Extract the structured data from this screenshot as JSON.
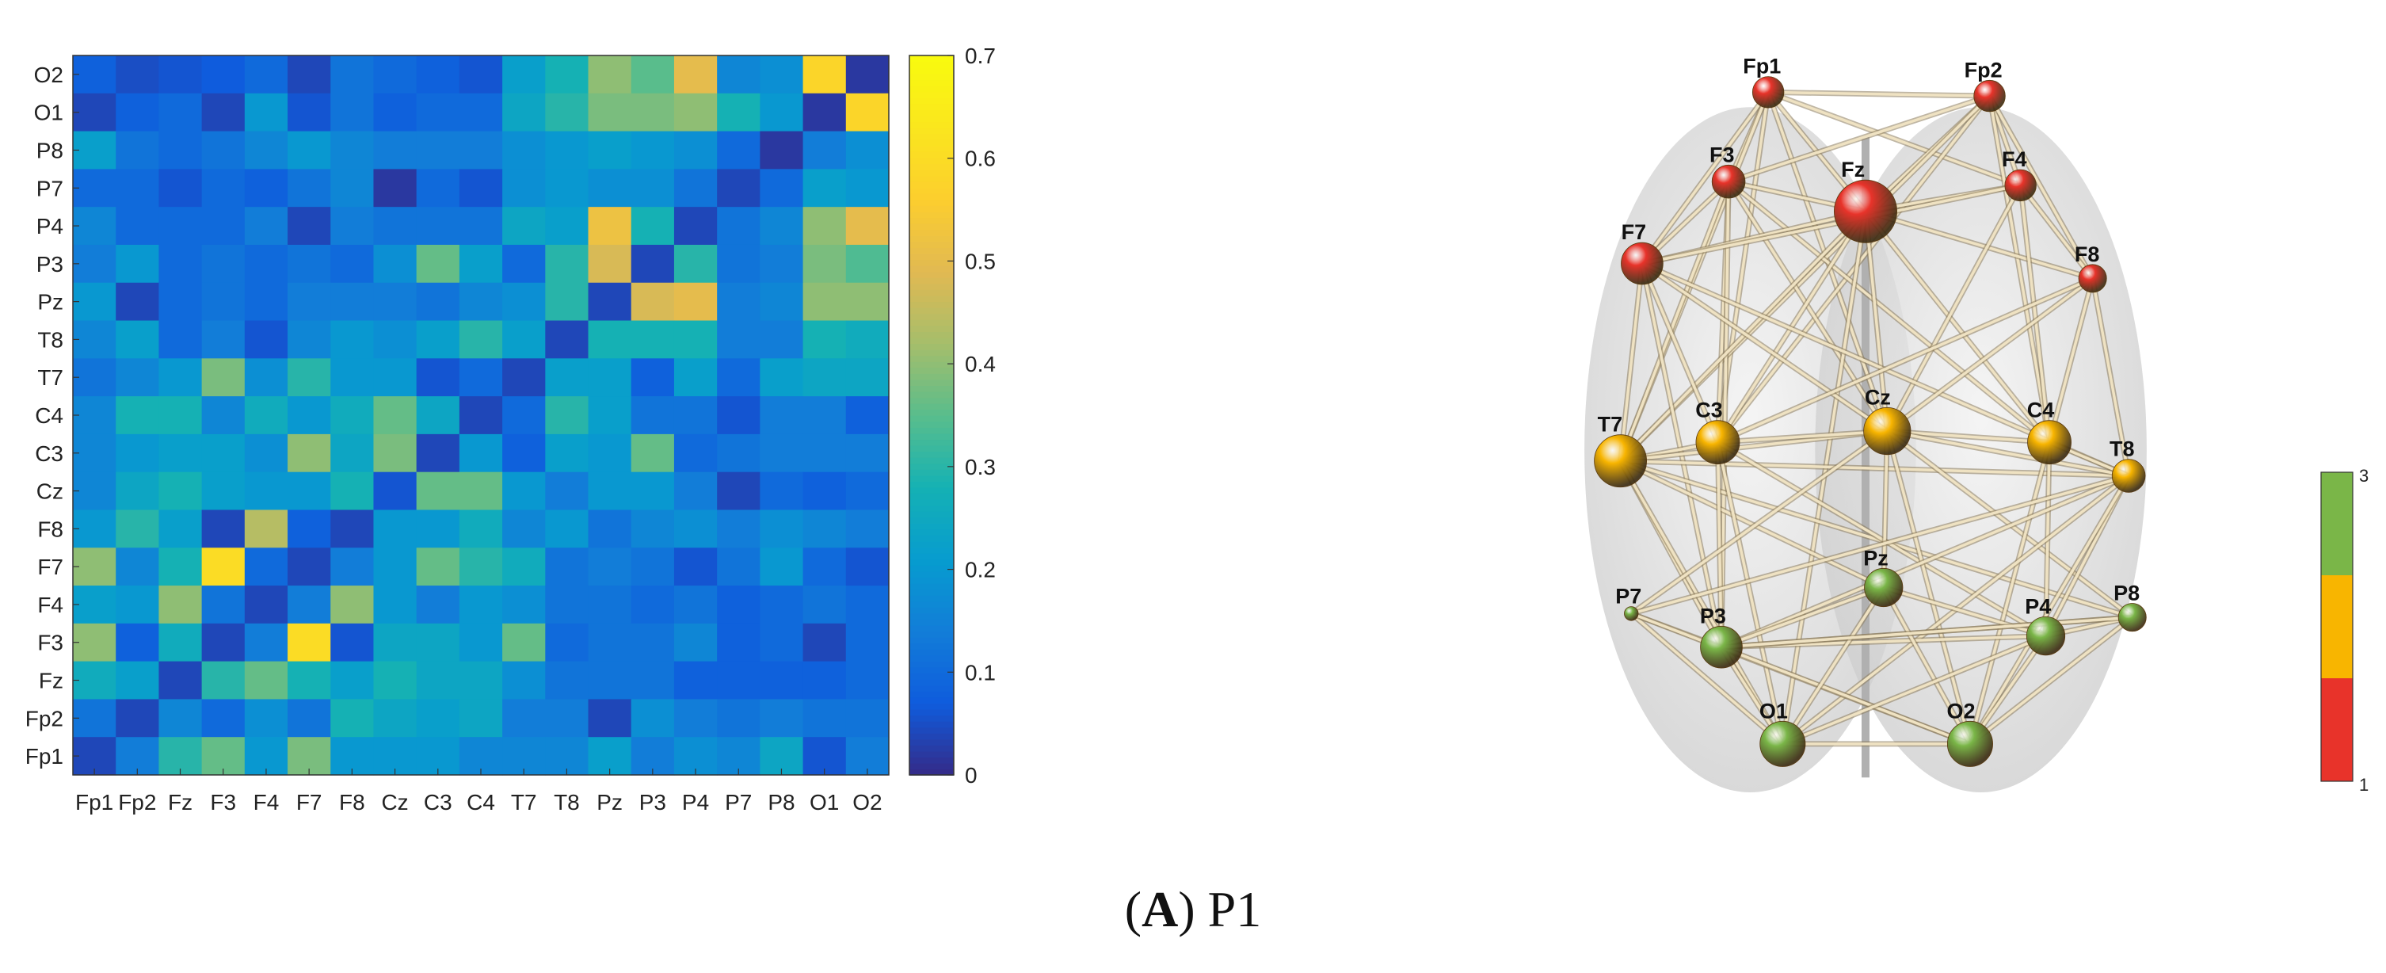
{
  "caption": {
    "letter": "A",
    "label": "P1"
  },
  "chart_data": [
    {
      "type": "heatmap",
      "x_categories": [
        "Fp1",
        "Fp2",
        "Fz",
        "F3",
        "F4",
        "F7",
        "F8",
        "Cz",
        "C3",
        "C4",
        "T7",
        "T8",
        "Pz",
        "P3",
        "P4",
        "P7",
        "P8",
        "O1",
        "O2"
      ],
      "y_categories": [
        "O2",
        "O1",
        "P8",
        "P7",
        "P4",
        "P3",
        "Pz",
        "T8",
        "T7",
        "C4",
        "C3",
        "Cz",
        "F8",
        "F7",
        "F4",
        "F3",
        "Fz",
        "Fp2",
        "Fp1"
      ],
      "colorbar": {
        "min": 0,
        "max": 0.7,
        "ticks": [
          0,
          0.1,
          0.2,
          0.3,
          0.4,
          0.5,
          0.6,
          0.7
        ],
        "tick_labels": [
          "0",
          "0.1",
          "0.2",
          "0.3",
          "0.4",
          "0.5",
          "0.6",
          "0.7"
        ],
        "colormap": "parula"
      },
      "values": [
        [
          0.08,
          0.05,
          0.06,
          0.07,
          0.1,
          0.04,
          0.12,
          0.1,
          0.08,
          0.06,
          0.22,
          0.28,
          0.4,
          0.35,
          0.5,
          0.16,
          0.18,
          0.58,
          0.02
        ],
        [
          0.04,
          0.08,
          0.1,
          0.04,
          0.2,
          0.06,
          0.12,
          0.08,
          0.1,
          0.1,
          0.24,
          0.3,
          0.38,
          0.38,
          0.4,
          0.28,
          0.2,
          0.02,
          0.58
        ],
        [
          0.22,
          0.12,
          0.1,
          0.12,
          0.16,
          0.2,
          0.16,
          0.14,
          0.14,
          0.14,
          0.18,
          0.2,
          0.22,
          0.2,
          0.18,
          0.1,
          0.02,
          0.14,
          0.18
        ],
        [
          0.1,
          0.1,
          0.06,
          0.1,
          0.08,
          0.12,
          0.16,
          0.02,
          0.1,
          0.06,
          0.18,
          0.2,
          0.18,
          0.18,
          0.12,
          0.04,
          0.1,
          0.22,
          0.2
        ],
        [
          0.16,
          0.1,
          0.1,
          0.1,
          0.14,
          0.04,
          0.14,
          0.12,
          0.12,
          0.12,
          0.24,
          0.22,
          0.52,
          0.28,
          0.04,
          0.12,
          0.16,
          0.4,
          0.5
        ],
        [
          0.14,
          0.2,
          0.1,
          0.12,
          0.1,
          0.12,
          0.1,
          0.18,
          0.36,
          0.22,
          0.1,
          0.3,
          0.48,
          0.04,
          0.3,
          0.12,
          0.14,
          0.38,
          0.34
        ],
        [
          0.2,
          0.04,
          0.1,
          0.12,
          0.1,
          0.14,
          0.14,
          0.14,
          0.12,
          0.16,
          0.18,
          0.3,
          0.04,
          0.48,
          0.5,
          0.14,
          0.16,
          0.4,
          0.4
        ],
        [
          0.16,
          0.22,
          0.1,
          0.14,
          0.06,
          0.16,
          0.2,
          0.18,
          0.22,
          0.3,
          0.22,
          0.04,
          0.28,
          0.28,
          0.28,
          0.14,
          0.14,
          0.28,
          0.26
        ],
        [
          0.12,
          0.16,
          0.2,
          0.38,
          0.18,
          0.3,
          0.2,
          0.2,
          0.06,
          0.1,
          0.04,
          0.22,
          0.22,
          0.08,
          0.22,
          0.1,
          0.22,
          0.24,
          0.24
        ],
        [
          0.16,
          0.28,
          0.28,
          0.16,
          0.26,
          0.2,
          0.26,
          0.36,
          0.24,
          0.04,
          0.1,
          0.3,
          0.22,
          0.12,
          0.12,
          0.06,
          0.14,
          0.14,
          0.08
        ],
        [
          0.16,
          0.2,
          0.22,
          0.22,
          0.18,
          0.4,
          0.24,
          0.38,
          0.04,
          0.2,
          0.08,
          0.22,
          0.2,
          0.36,
          0.1,
          0.12,
          0.14,
          0.14,
          0.14
        ],
        [
          0.16,
          0.24,
          0.28,
          0.22,
          0.2,
          0.2,
          0.28,
          0.06,
          0.36,
          0.36,
          0.2,
          0.14,
          0.2,
          0.2,
          0.14,
          0.04,
          0.1,
          0.08,
          0.1
        ],
        [
          0.2,
          0.3,
          0.22,
          0.04,
          0.44,
          0.08,
          0.04,
          0.2,
          0.2,
          0.26,
          0.16,
          0.2,
          0.12,
          0.16,
          0.18,
          0.14,
          0.18,
          0.16,
          0.14
        ],
        [
          0.4,
          0.16,
          0.28,
          0.6,
          0.1,
          0.04,
          0.14,
          0.2,
          0.36,
          0.3,
          0.26,
          0.12,
          0.14,
          0.12,
          0.06,
          0.12,
          0.2,
          0.1,
          0.06
        ],
        [
          0.22,
          0.2,
          0.4,
          0.12,
          0.04,
          0.14,
          0.4,
          0.2,
          0.14,
          0.2,
          0.18,
          0.12,
          0.12,
          0.1,
          0.12,
          0.08,
          0.1,
          0.12,
          0.1
        ],
        [
          0.4,
          0.08,
          0.26,
          0.04,
          0.14,
          0.6,
          0.06,
          0.24,
          0.24,
          0.2,
          0.36,
          0.1,
          0.12,
          0.12,
          0.16,
          0.08,
          0.1,
          0.04,
          0.1
        ],
        [
          0.26,
          0.22,
          0.04,
          0.3,
          0.36,
          0.28,
          0.22,
          0.28,
          0.24,
          0.24,
          0.18,
          0.12,
          0.12,
          0.12,
          0.08,
          0.08,
          0.08,
          0.08,
          0.1
        ],
        [
          0.12,
          0.04,
          0.16,
          0.1,
          0.18,
          0.12,
          0.28,
          0.24,
          0.22,
          0.24,
          0.14,
          0.14,
          0.04,
          0.18,
          0.14,
          0.12,
          0.14,
          0.12,
          0.12
        ],
        [
          0.04,
          0.14,
          0.3,
          0.36,
          0.2,
          0.38,
          0.2,
          0.2,
          0.2,
          0.16,
          0.16,
          0.16,
          0.22,
          0.14,
          0.18,
          0.16,
          0.24,
          0.06,
          0.14
        ]
      ]
    },
    {
      "type": "network",
      "nodes": [
        {
          "label": "Fp1",
          "level": 1,
          "x": 0.365,
          "y": 0.06,
          "size": 0.9
        },
        {
          "label": "Fp2",
          "level": 1,
          "x": 0.672,
          "y": 0.065,
          "size": 0.9
        },
        {
          "label": "F3",
          "level": 1,
          "x": 0.31,
          "y": 0.18,
          "size": 0.95
        },
        {
          "label": "Fz",
          "level": 1,
          "x": 0.5,
          "y": 0.22,
          "size": 1.8
        },
        {
          "label": "F4",
          "level": 1,
          "x": 0.715,
          "y": 0.185,
          "size": 0.9
        },
        {
          "label": "F7",
          "level": 1,
          "x": 0.19,
          "y": 0.29,
          "size": 1.2
        },
        {
          "label": "F8",
          "level": 1,
          "x": 0.815,
          "y": 0.31,
          "size": 0.8
        },
        {
          "label": "T7",
          "level": 2,
          "x": 0.16,
          "y": 0.555,
          "size": 1.5
        },
        {
          "label": "C3",
          "level": 2,
          "x": 0.295,
          "y": 0.53,
          "size": 1.25
        },
        {
          "label": "Cz",
          "level": 2,
          "x": 0.53,
          "y": 0.515,
          "size": 1.35
        },
        {
          "label": "C4",
          "level": 2,
          "x": 0.755,
          "y": 0.53,
          "size": 1.25
        },
        {
          "label": "T8",
          "level": 2,
          "x": 0.865,
          "y": 0.575,
          "size": 0.95
        },
        {
          "label": "P7",
          "level": 3,
          "x": 0.175,
          "y": 0.76,
          "size": 0.4
        },
        {
          "label": "P3",
          "level": 3,
          "x": 0.3,
          "y": 0.805,
          "size": 1.2
        },
        {
          "label": "Pz",
          "level": 3,
          "x": 0.525,
          "y": 0.725,
          "size": 1.1
        },
        {
          "label": "P4",
          "level": 3,
          "x": 0.75,
          "y": 0.79,
          "size": 1.1
        },
        {
          "label": "P8",
          "level": 3,
          "x": 0.87,
          "y": 0.765,
          "size": 0.8
        },
        {
          "label": "O1",
          "level": 3,
          "x": 0.385,
          "y": 0.935,
          "size": 1.3
        },
        {
          "label": "O2",
          "level": 3,
          "x": 0.645,
          "y": 0.935,
          "size": 1.3
        }
      ],
      "edges": [
        [
          "Fp1",
          "Fp2"
        ],
        [
          "Fp1",
          "F3"
        ],
        [
          "Fp1",
          "Fz"
        ],
        [
          "Fp1",
          "F4"
        ],
        [
          "Fp1",
          "F7"
        ],
        [
          "Fp1",
          "C3"
        ],
        [
          "Fp1",
          "Cz"
        ],
        [
          "Fp1",
          "T7"
        ],
        [
          "Fp2",
          "F4"
        ],
        [
          "Fp2",
          "F8"
        ],
        [
          "Fp2",
          "Fz"
        ],
        [
          "Fp2",
          "F3"
        ],
        [
          "Fp2",
          "C4"
        ],
        [
          "Fp2",
          "C3"
        ],
        [
          "Fp2",
          "T7"
        ],
        [
          "F3",
          "F7"
        ],
        [
          "F3",
          "Fz"
        ],
        [
          "F3",
          "C3"
        ],
        [
          "F3",
          "Cz"
        ],
        [
          "F3",
          "T7"
        ],
        [
          "F3",
          "P3"
        ],
        [
          "F3",
          "C4"
        ],
        [
          "Fz",
          "F4"
        ],
        [
          "Fz",
          "F8"
        ],
        [
          "Fz",
          "F7"
        ],
        [
          "Fz",
          "Cz"
        ],
        [
          "Fz",
          "C3"
        ],
        [
          "Fz",
          "T7"
        ],
        [
          "Fz",
          "C4"
        ],
        [
          "Fz",
          "O1"
        ],
        [
          "F4",
          "F8"
        ],
        [
          "F4",
          "Cz"
        ],
        [
          "F4",
          "C4"
        ],
        [
          "F4",
          "F7"
        ],
        [
          "F7",
          "C3"
        ],
        [
          "F7",
          "T7"
        ],
        [
          "F7",
          "Cz"
        ],
        [
          "F7",
          "P3"
        ],
        [
          "F7",
          "T8"
        ],
        [
          "F8",
          "C4"
        ],
        [
          "F8",
          "T8"
        ],
        [
          "F8",
          "Cz"
        ],
        [
          "F8",
          "C3"
        ],
        [
          "T7",
          "C3"
        ],
        [
          "T7",
          "P3"
        ],
        [
          "T7",
          "Cz"
        ],
        [
          "T7",
          "O1"
        ],
        [
          "T7",
          "P8"
        ],
        [
          "T7",
          "T8"
        ],
        [
          "T7",
          "Pz"
        ],
        [
          "C3",
          "Cz"
        ],
        [
          "C3",
          "P3"
        ],
        [
          "C3",
          "O1"
        ],
        [
          "C3",
          "P4"
        ],
        [
          "Cz",
          "C4"
        ],
        [
          "Cz",
          "Pz"
        ],
        [
          "Cz",
          "O2"
        ],
        [
          "Cz",
          "T8"
        ],
        [
          "Cz",
          "P7"
        ],
        [
          "Cz",
          "P8"
        ],
        [
          "C4",
          "T8"
        ],
        [
          "C4",
          "P4"
        ],
        [
          "C4",
          "O2"
        ],
        [
          "T8",
          "P4"
        ],
        [
          "T8",
          "O2"
        ],
        [
          "T8",
          "P3"
        ],
        [
          "T8",
          "O1"
        ],
        [
          "T8",
          "P7"
        ],
        [
          "P7",
          "P3"
        ],
        [
          "P7",
          "O1"
        ],
        [
          "P7",
          "O2"
        ],
        [
          "P3",
          "Pz"
        ],
        [
          "P3",
          "O1"
        ],
        [
          "P3",
          "O2"
        ],
        [
          "P3",
          "P4"
        ],
        [
          "P3",
          "P8"
        ],
        [
          "Pz",
          "O1"
        ],
        [
          "Pz",
          "O2"
        ],
        [
          "Pz",
          "P4"
        ],
        [
          "P4",
          "O2"
        ],
        [
          "P4",
          "O1"
        ],
        [
          "P4",
          "P8"
        ],
        [
          "P8",
          "O2"
        ],
        [
          "O1",
          "O2"
        ],
        [
          "P8",
          "P3"
        ]
      ],
      "level_colors": {
        "1": "#e8332a",
        "2": "#f8b500",
        "3": "#7ab648"
      },
      "level_legend": {
        "min_label": "1",
        "max_label": "3"
      }
    }
  ]
}
